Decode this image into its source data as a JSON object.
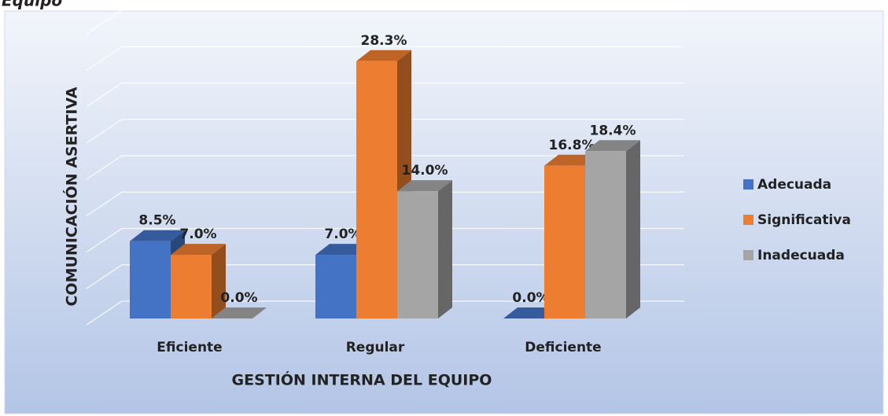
{
  "caption": "Equipo",
  "chart_data": {
    "type": "bar3d",
    "ylabel": "COMUNICACIÓN ASERTIVA",
    "xlabel": "GESTIÓN INTERNA DEL EQUIPO",
    "categories": [
      "Eficiente",
      "Regular",
      "Deficiente"
    ],
    "series": [
      {
        "name": "Adecuada",
        "color": "#4472c4",
        "values": [
          8.5,
          7.0,
          0.0
        ],
        "value_labels": [
          "8.5%",
          "7.0%",
          "0.0%"
        ]
      },
      {
        "name": "Significativa",
        "color": "#ed7d31",
        "values": [
          7.0,
          28.3,
          16.8
        ],
        "value_labels": [
          "7.0%",
          "28.3%",
          "16.8%"
        ]
      },
      {
        "name": "Inadecuada",
        "color": "#a5a5a5",
        "values": [
          0.0,
          14.0,
          18.4
        ],
        "value_labels": [
          "0.0%",
          "14.0%",
          "18.4%"
        ]
      }
    ],
    "ylim": [
      0,
      32
    ],
    "yticks": [
      0,
      4,
      8,
      12,
      16,
      20,
      24,
      28,
      32
    ],
    "grid": true,
    "legend": "right"
  }
}
